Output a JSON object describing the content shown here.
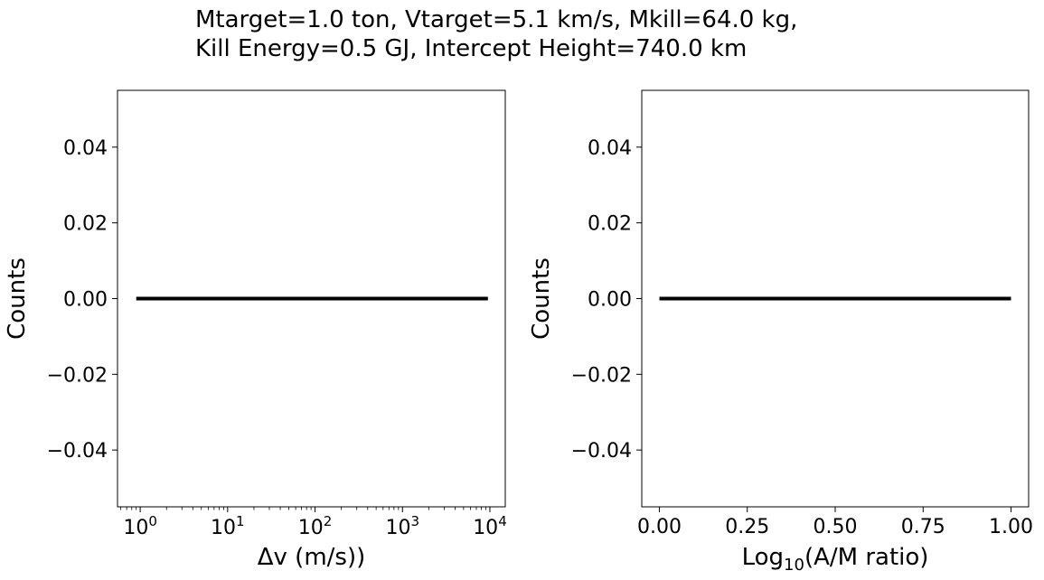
{
  "title_lines": [
    "Mtarget=1.0 ton, Vtarget=5.1 km/s, Mkill=64.0 kg,",
    "Kill Energy=0.5 GJ, Intercept Height=740.0 km"
  ],
  "chart_data": [
    {
      "type": "line",
      "xlabel": "Δv (m/s))",
      "ylabel": "Counts",
      "xscale": "log",
      "xlim": [
        0.55,
        15000
      ],
      "ylim": [
        -0.055,
        0.055
      ],
      "xticks": [
        {
          "base": "10",
          "exp": "0",
          "value": 1
        },
        {
          "base": "10",
          "exp": "1",
          "value": 10
        },
        {
          "base": "10",
          "exp": "2",
          "value": 100
        },
        {
          "base": "10",
          "exp": "3",
          "value": 1000
        },
        {
          "base": "10",
          "exp": "4",
          "value": 10000
        }
      ],
      "yticks": [
        "0.04",
        "0.02",
        "0.00",
        "−0.02",
        "−0.04"
      ],
      "ytick_values": [
        0.04,
        0.02,
        0.0,
        -0.02,
        -0.04
      ],
      "series": [
        {
          "x": [
            0.9,
            9500
          ],
          "y": [
            0,
            0
          ],
          "color": "#000000"
        }
      ]
    },
    {
      "type": "line",
      "xlabel_base": "Log",
      "xlabel_sub": "10",
      "xlabel_rest": "(A/M ratio)",
      "ylabel": "Counts",
      "xscale": "linear",
      "xlim": [
        -0.05,
        1.05
      ],
      "ylim": [
        -0.055,
        0.055
      ],
      "xticks": [
        "0.00",
        "0.25",
        "0.50",
        "0.75",
        "1.00"
      ],
      "xtick_values": [
        0,
        0.25,
        0.5,
        0.75,
        1.0
      ],
      "yticks": [
        "0.04",
        "0.02",
        "0.00",
        "−0.02",
        "−0.04"
      ],
      "ytick_values": [
        0.04,
        0.02,
        0.0,
        -0.02,
        -0.04
      ],
      "series": [
        {
          "x": [
            0,
            1
          ],
          "y": [
            0,
            0
          ],
          "color": "#000000"
        }
      ]
    }
  ]
}
